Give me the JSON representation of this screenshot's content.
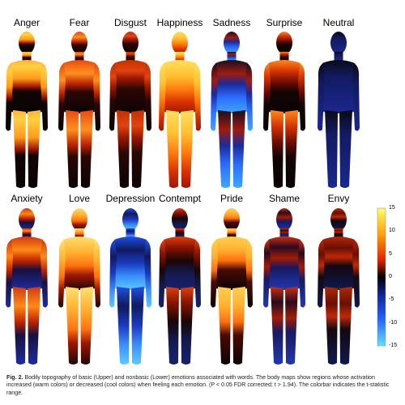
{
  "figure": {
    "upper_emotions": [
      {
        "label": "Anger",
        "scheme": "anger"
      },
      {
        "label": "Fear",
        "scheme": "fear"
      },
      {
        "label": "Disgust",
        "scheme": "disgust"
      },
      {
        "label": "Happiness",
        "scheme": "happy"
      },
      {
        "label": "Sadness",
        "scheme": "sad"
      },
      {
        "label": "Surprise",
        "scheme": "surprise"
      },
      {
        "label": "Neutral",
        "scheme": "neutral"
      }
    ],
    "lower_emotions": [
      {
        "label": "Anxiety",
        "scheme": "anxiety"
      },
      {
        "label": "Love",
        "scheme": "love"
      },
      {
        "label": "Depression",
        "scheme": "depression"
      },
      {
        "label": "Contempt",
        "scheme": "contempt"
      },
      {
        "label": "Pride",
        "scheme": "pride"
      },
      {
        "label": "Shame",
        "scheme": "shame"
      },
      {
        "label": "Envy",
        "scheme": "envy"
      }
    ],
    "colorbar": {
      "ticks": [
        "15",
        "10",
        "5",
        "0",
        "-5",
        "-10",
        "-15"
      ],
      "max": 15,
      "min": -15,
      "colors": [
        "#ffff66",
        "#ff9900",
        "#e02000",
        "#000000",
        "#102090",
        "#2060ff",
        "#66e0ff"
      ]
    }
  },
  "caption": {
    "label": "Fig. 2.",
    "text": "Bodily topography of basic (Upper) and nonbasic (Lower) emotions associated with words. The body maps show regions whose activation increased (warm colors) or decreased (cool colors) when feeling each emotion. (P < 0.05 FDR corrected; t > 1.94). The colorbar indicates the t-statistic range."
  },
  "colors": {
    "hot_yellow": "#ffe14a",
    "hot_orange": "#ff7a10",
    "hot_red": "#c81e00",
    "dark": "#0a0505",
    "cool_blue": "#1c2ca8",
    "cool_light": "#3fa8ff"
  }
}
